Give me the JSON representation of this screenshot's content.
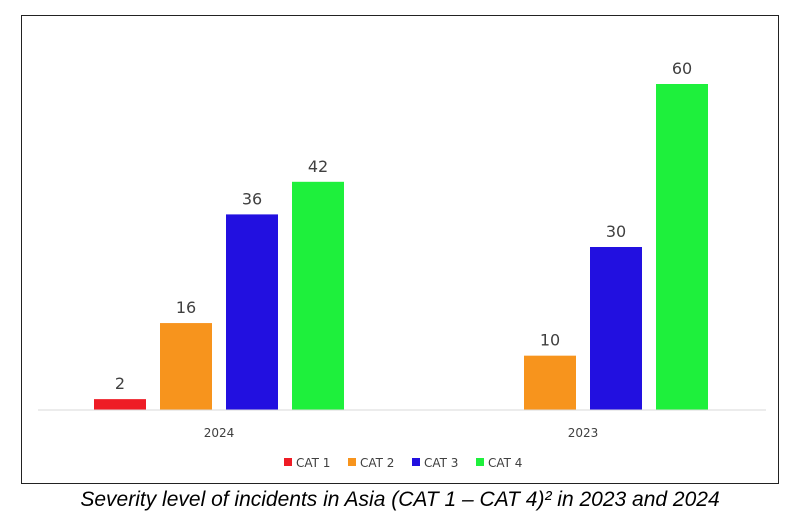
{
  "caption": "Severity level of incidents in Asia (CAT 1 – CAT 4)² in 2023 and 2024",
  "chart_data": {
    "type": "bar",
    "title": "",
    "xlabel": "",
    "ylabel": "",
    "categories": [
      "2024",
      "2023"
    ],
    "ylim": [
      0,
      60
    ],
    "grid": false,
    "legend_position": "bottom",
    "series": [
      {
        "name": "CAT 1",
        "color": "#ee1c25",
        "values": [
          2,
          null
        ]
      },
      {
        "name": "CAT 2",
        "color": "#f7941d",
        "values": [
          16,
          10
        ]
      },
      {
        "name": "CAT 3",
        "color": "#2210e0",
        "values": [
          36,
          30
        ]
      },
      {
        "name": "CAT 4",
        "color": "#1ef03c",
        "values": [
          42,
          60
        ]
      }
    ]
  }
}
